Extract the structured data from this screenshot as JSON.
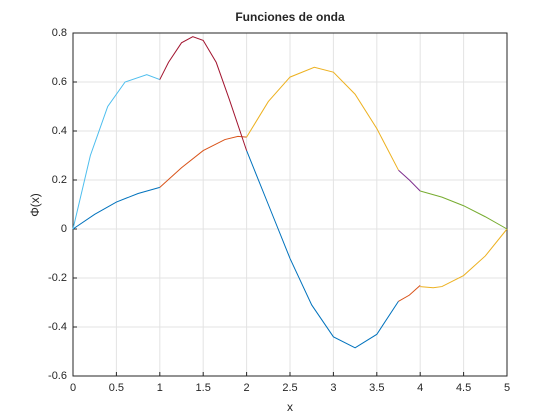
{
  "chart_data": {
    "type": "line",
    "title": "Funciones de onda",
    "xlabel": "x",
    "ylabel": "Φ(x)",
    "xlim": [
      0,
      5
    ],
    "ylim": [
      -0.6,
      0.8
    ],
    "xticks": [
      0,
      0.5,
      1,
      1.5,
      2,
      2.5,
      3,
      3.5,
      4,
      4.5,
      5
    ],
    "yticks": [
      -0.6,
      -0.4,
      -0.2,
      0,
      0.2,
      0.4,
      0.6,
      0.8
    ],
    "grid": true,
    "series": [
      {
        "color": "#0072BD",
        "x": [
          0,
          0.25,
          0.5,
          0.75,
          1
        ],
        "values": [
          0,
          0.06,
          0.11,
          0.145,
          0.17
        ]
      },
      {
        "color": "#D95319",
        "x": [
          1,
          1.25,
          1.5,
          1.75,
          1.9,
          2
        ],
        "values": [
          0.17,
          0.25,
          0.32,
          0.365,
          0.378,
          0.375
        ]
      },
      {
        "color": "#0072BD",
        "x": [
          2,
          2.25,
          2.5,
          2.75,
          3,
          3.25,
          3.5,
          3.75
        ],
        "values": [
          0.32,
          0.1,
          -0.12,
          -0.31,
          -0.44,
          -0.485,
          -0.43,
          -0.295
        ]
      },
      {
        "color": "#D95319",
        "x": [
          3.75,
          3.875,
          4
        ],
        "values": [
          -0.295,
          -0.27,
          -0.23
        ]
      },
      {
        "color": "#EDB120",
        "x": [
          4,
          4.15,
          4.25,
          4.5,
          4.75,
          5
        ],
        "values": [
          -0.235,
          -0.24,
          -0.235,
          -0.19,
          -0.11,
          0
        ]
      },
      {
        "color": "#4DBEEE",
        "x": [
          0,
          0.2,
          0.4,
          0.6,
          0.85,
          1
        ],
        "values": [
          0,
          0.3,
          0.5,
          0.6,
          0.63,
          0.61
        ]
      },
      {
        "color": "#A2142F",
        "x": [
          1,
          1.1,
          1.25,
          1.38,
          1.5,
          1.65,
          1.8,
          2
        ],
        "values": [
          0.61,
          0.68,
          0.76,
          0.785,
          0.77,
          0.68,
          0.53,
          0.32
        ]
      },
      {
        "color": "#EDB120",
        "x": [
          2,
          2.25,
          2.5,
          2.78,
          3,
          3.25,
          3.5,
          3.75
        ],
        "values": [
          0.375,
          0.52,
          0.62,
          0.66,
          0.64,
          0.55,
          0.41,
          0.24
        ]
      },
      {
        "color": "#7E2F8E",
        "x": [
          3.75,
          3.875,
          4
        ],
        "values": [
          0.24,
          0.2,
          0.155
        ]
      },
      {
        "color": "#77AC30",
        "x": [
          4,
          4.25,
          4.5,
          4.75,
          5
        ],
        "values": [
          0.155,
          0.13,
          0.095,
          0.05,
          0
        ]
      }
    ]
  }
}
